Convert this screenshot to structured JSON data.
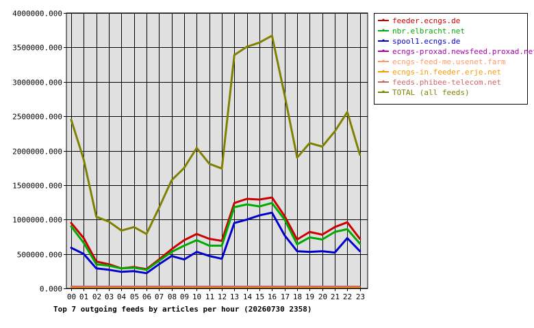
{
  "chart_data": {
    "type": "line",
    "title": "Top 7 outgoing feeds by articles per hour (20260730 2358)",
    "xlabel": "",
    "ylabel": "",
    "categories": [
      "00",
      "01",
      "02",
      "03",
      "04",
      "05",
      "06",
      "07",
      "08",
      "09",
      "10",
      "11",
      "12",
      "13",
      "14",
      "15",
      "16",
      "17",
      "18",
      "19",
      "20",
      "21",
      "22",
      "23"
    ],
    "ylim": [
      0,
      4000000
    ],
    "yticks": [
      0,
      500000,
      1000000,
      1500000,
      2000000,
      2500000,
      3000000,
      3500000,
      4000000
    ],
    "ytick_labels": [
      "0.000",
      "500000.000",
      "1000000.000",
      "1500000.000",
      "2000000.000",
      "2500000.000",
      "3000000.000",
      "3500000.000",
      "4000000.000"
    ],
    "grid": true,
    "legend_position": "right",
    "plot_background": "#e0e0e0",
    "series": [
      {
        "name": "feeder.ecngs.de",
        "color": "#cc0000",
        "values": [
          950000,
          730000,
          390000,
          350000,
          290000,
          310000,
          280000,
          420000,
          570000,
          700000,
          790000,
          720000,
          690000,
          1240000,
          1300000,
          1290000,
          1320000,
          1050000,
          710000,
          820000,
          780000,
          890000,
          960000,
          720000
        ]
      },
      {
        "name": "nbr.elbracht.net",
        "color": "#00aa00",
        "values": [
          900000,
          660000,
          350000,
          330000,
          290000,
          300000,
          270000,
          400000,
          530000,
          620000,
          700000,
          620000,
          620000,
          1180000,
          1220000,
          1190000,
          1240000,
          1000000,
          640000,
          740000,
          710000,
          820000,
          860000,
          650000
        ]
      },
      {
        "name": "spool1.ecngs.de",
        "color": "#0000cc",
        "values": [
          590000,
          500000,
          290000,
          270000,
          240000,
          250000,
          220000,
          350000,
          470000,
          420000,
          530000,
          470000,
          430000,
          950000,
          1000000,
          1060000,
          1100000,
          770000,
          540000,
          530000,
          540000,
          520000,
          730000,
          540000
        ]
      },
      {
        "name": "ecngs-proxad.newsfeed.proxad.net",
        "color": "#aa00aa",
        "values": [
          30000,
          20000,
          30000,
          30000,
          30000,
          30000,
          30000,
          30000,
          30000,
          30000,
          30000,
          30000,
          30000,
          30000,
          30000,
          30000,
          30000,
          30000,
          30000,
          20000,
          30000,
          30000,
          30000,
          30000
        ]
      },
      {
        "name": "ecngs-feed-me.usenet.farm",
        "color": "#ff9966",
        "values": [
          20000,
          20000,
          20000,
          20000,
          20000,
          20000,
          20000,
          20000,
          20000,
          20000,
          20000,
          20000,
          20000,
          20000,
          20000,
          20000,
          20000,
          20000,
          20000,
          20000,
          20000,
          20000,
          20000,
          20000
        ]
      },
      {
        "name": "ecngs-in.feeder.erje.net",
        "color": "#ff9900",
        "values": [
          10000,
          10000,
          10000,
          10000,
          10000,
          10000,
          10000,
          10000,
          10000,
          10000,
          10000,
          10000,
          10000,
          10000,
          10000,
          10000,
          10000,
          10000,
          10000,
          10000,
          10000,
          10000,
          10000,
          10000
        ]
      },
      {
        "name": "feeds.phibee-telecom.net",
        "color": "#cc6666",
        "values": [
          30000,
          30000,
          30000,
          30000,
          30000,
          30000,
          30000,
          30000,
          30000,
          30000,
          30000,
          30000,
          30000,
          30000,
          30000,
          30000,
          30000,
          30000,
          30000,
          30000,
          30000,
          30000,
          30000,
          30000
        ]
      },
      {
        "name": "TOTAL (all feeds)",
        "color": "#808000",
        "values": [
          2450000,
          1870000,
          1040000,
          970000,
          840000,
          890000,
          790000,
          1170000,
          1570000,
          1750000,
          2040000,
          1810000,
          1740000,
          3390000,
          3510000,
          3570000,
          3670000,
          2810000,
          1900000,
          2110000,
          2060000,
          2280000,
          2560000,
          1940000
        ]
      }
    ]
  }
}
